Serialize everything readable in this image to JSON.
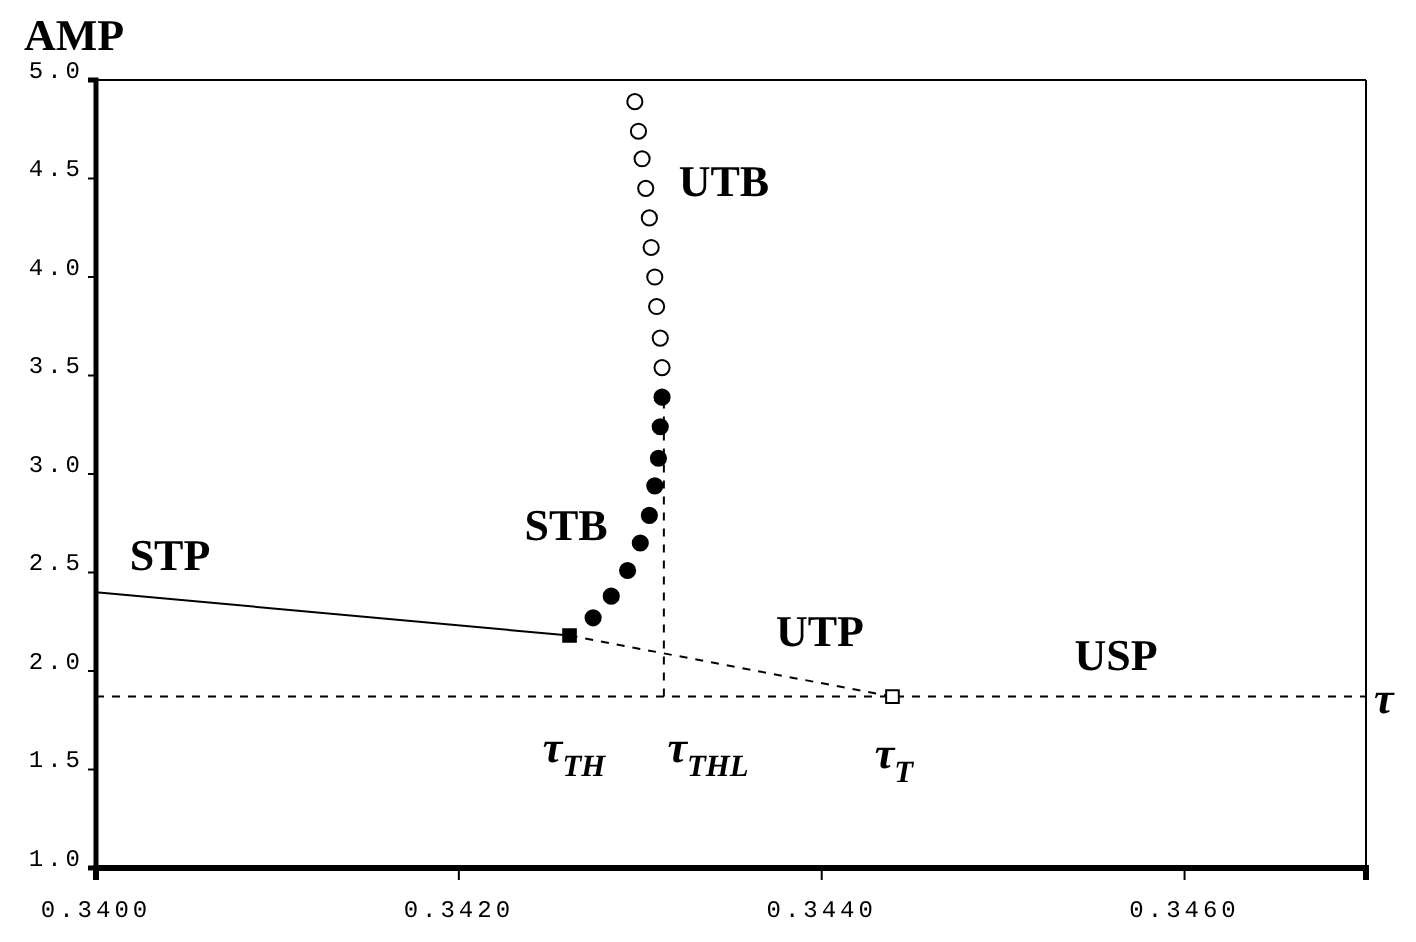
{
  "chart_data": {
    "type": "line",
    "ylabel": "AMP",
    "xlim": [
      0.34,
      0.347
    ],
    "xticks": [
      {
        "value": 0.34,
        "label": "0.3400"
      },
      {
        "value": 0.342,
        "label": "0.3420"
      },
      {
        "value": 0.344,
        "label": "0.3440"
      },
      {
        "value": 0.346,
        "label": "0.3460"
      }
    ],
    "ylim": [
      1.0,
      5.0
    ],
    "yticks": [
      {
        "value": 1.0,
        "label": "1.0"
      },
      {
        "value": 1.5,
        "label": "1.5"
      },
      {
        "value": 2.0,
        "label": "2.0"
      },
      {
        "value": 2.5,
        "label": "2.5"
      },
      {
        "value": 3.0,
        "label": "3.0"
      },
      {
        "value": 3.5,
        "label": "3.5"
      },
      {
        "value": 4.0,
        "label": "4.0"
      },
      {
        "value": 4.5,
        "label": "4.5"
      },
      {
        "value": 5.0,
        "label": "5.0"
      }
    ],
    "grid": false,
    "series": [
      {
        "color": "#000000",
        "line_style": "solid",
        "marker": "none",
        "x": [
          0.34,
          0.34261
        ],
        "values": [
          2.4,
          2.18
        ]
      },
      {
        "color": "#000000",
        "line_style": "dashed",
        "marker": "none",
        "x": [
          0.34261,
          0.34439
        ],
        "values": [
          2.18,
          1.87
        ]
      },
      {
        "color": "#000000",
        "line_style": "dashed",
        "marker": "none",
        "x": [
          0.34313,
          0.34313
        ],
        "values": [
          1.87,
          3.4
        ]
      },
      {
        "type": "scatter",
        "color": "#000000",
        "marker": "circle",
        "x": [
          0.34274,
          0.34284,
          0.34293,
          0.343,
          0.34305,
          0.34308,
          0.3431,
          0.34311,
          0.34312
        ],
        "values": [
          2.27,
          2.38,
          2.51,
          2.65,
          2.79,
          2.94,
          3.08,
          3.24,
          3.39
        ]
      },
      {
        "type": "scatter",
        "color": "#ffffff",
        "marker": "circle",
        "x": [
          0.34297,
          0.34299,
          0.34301,
          0.34303,
          0.34305,
          0.34306,
          0.34308,
          0.34309,
          0.34311,
          0.34312
        ],
        "values": [
          4.89,
          4.74,
          4.6,
          4.45,
          4.3,
          4.15,
          4.0,
          3.85,
          3.69,
          3.54
        ]
      },
      {
        "type": "scatter",
        "color": "#000000",
        "marker": "square",
        "x": [
          0.34261
        ],
        "values": [
          2.18
        ]
      },
      {
        "type": "scatter",
        "color": "#ffffff",
        "marker": "square",
        "x": [
          0.34439
        ],
        "values": [
          1.87
        ]
      }
    ],
    "ref_lines": [
      {
        "axis": "y",
        "value": 1.87,
        "label": "τ",
        "line_style": "dashed",
        "color": "#000000"
      }
    ],
    "annotations": [
      "STP",
      "STB",
      "UTB",
      "UTP",
      "USP",
      "τ$_{TH}$",
      "τ$_{THL}$",
      "τ$_{T}$"
    ]
  }
}
